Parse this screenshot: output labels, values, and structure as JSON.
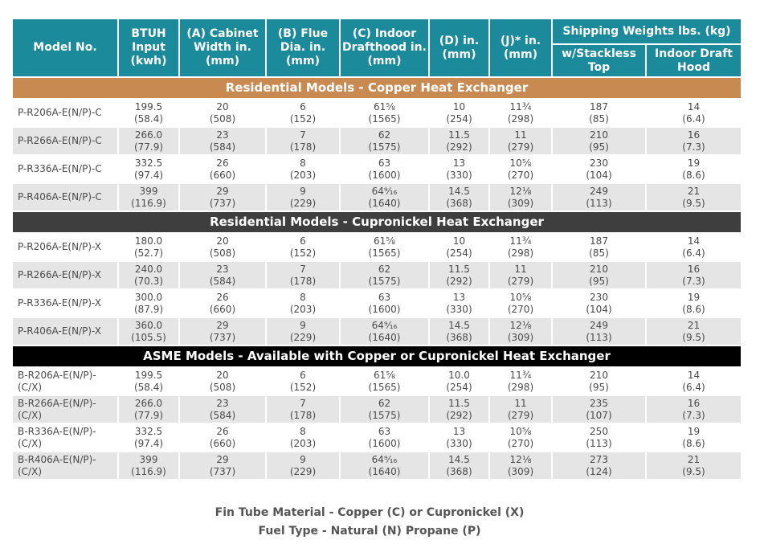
{
  "header": {
    "columns": [
      "Model No.",
      "BTUH Input (kwh)",
      "(A) Cabinet Width in.(mm)",
      "(B) Flue Dia. in. (mm)",
      "(C) Indoor Drafthood in. (mm)",
      "(D) in. (mm)",
      "(J)* in. (mm)"
    ],
    "group": "Shipping Weights  lbs. (kg)",
    "sub_columns": [
      "w/Stackless Top",
      "Indoor Draft Hood"
    ]
  },
  "sections": [
    {
      "title": "Residential Models - Copper Heat Exchanger",
      "rows": [
        [
          "P-R206A-E(N/P)-C",
          [
            "199.5",
            "(58.4)"
          ],
          [
            "20",
            "(508)"
          ],
          [
            "6",
            "(152)"
          ],
          [
            "61⅝",
            "(1565)"
          ],
          [
            "10",
            "(254)"
          ],
          [
            "11¾",
            "(298)"
          ],
          [
            "187",
            "(85)"
          ],
          [
            "14",
            "(6.4)"
          ]
        ],
        [
          "P-R266A-E(N/P)-C",
          [
            "266.0",
            "(77.9)"
          ],
          [
            "23",
            "(584)"
          ],
          [
            "7",
            "(178)"
          ],
          [
            "62",
            "(1575)"
          ],
          [
            "11.5",
            "(292)"
          ],
          [
            "11",
            "(279)"
          ],
          [
            "210",
            "(95)"
          ],
          [
            "16",
            "(7.3)"
          ]
        ],
        [
          "P-R336A-E(N/P)-C",
          [
            "332.5",
            "(97.4)"
          ],
          [
            "26",
            "(660)"
          ],
          [
            "8",
            "(203)"
          ],
          [
            "63",
            "(1600)"
          ],
          [
            "13",
            "(330)"
          ],
          [
            "10⅝",
            "(270)"
          ],
          [
            "230",
            "(104)"
          ],
          [
            "19",
            "(8.6)"
          ]
        ],
        [
          "P-R406A-E(N/P)-C",
          [
            "399",
            "(116.9)"
          ],
          [
            "29",
            "(737)"
          ],
          [
            "9",
            "(229)"
          ],
          [
            "64⁹⁄₁₆",
            "(1640)"
          ],
          [
            "14.5",
            "(368)"
          ],
          [
            "12⅛",
            "(309)"
          ],
          [
            "249",
            "(113)"
          ],
          [
            "21",
            "(9.5)"
          ]
        ]
      ]
    },
    {
      "title": "Residential Models - Cupronickel Heat Exchanger",
      "rows": [
        [
          "P-R206A-E(N/P)-X",
          [
            "180.0",
            "(52.7)"
          ],
          [
            "20",
            "(508)"
          ],
          [
            "6",
            "(152)"
          ],
          [
            "61⅝",
            "(1565)"
          ],
          [
            "10",
            "(254)"
          ],
          [
            "11¾",
            "(298)"
          ],
          [
            "187",
            "(85)"
          ],
          [
            "14",
            "(6.4)"
          ]
        ],
        [
          "P-R266A-E(N/P)-X",
          [
            "240.0",
            "(70.3)"
          ],
          [
            "23",
            "(584)"
          ],
          [
            "7",
            "(178)"
          ],
          [
            "62",
            "(1575)"
          ],
          [
            "11.5",
            "(292)"
          ],
          [
            "11",
            "(279)"
          ],
          [
            "210",
            "(95)"
          ],
          [
            "16",
            "(7.3)"
          ]
        ],
        [
          "P-R336A-E(N/P)-X",
          [
            "300.0",
            "(87.9)"
          ],
          [
            "26",
            "(660)"
          ],
          [
            "8",
            "(203)"
          ],
          [
            "63",
            "(1600)"
          ],
          [
            "13",
            "(330)"
          ],
          [
            "10⅝",
            "(270)"
          ],
          [
            "230",
            "(104)"
          ],
          [
            "19",
            "(8.6)"
          ]
        ],
        [
          "P-R406A-E(N/P)-X",
          [
            "360.0",
            "(105.5)"
          ],
          [
            "29",
            "(737)"
          ],
          [
            "9",
            "(229)"
          ],
          [
            "64⁹⁄₁₆",
            "(1640)"
          ],
          [
            "14.5",
            "(368)"
          ],
          [
            "12⅛",
            "(309)"
          ],
          [
            "249",
            "(113)"
          ],
          [
            "21",
            "(9.5)"
          ]
        ]
      ]
    },
    {
      "title": "ASME Models - Available with Copper or Cupronickel Heat Exchanger",
      "rows": [
        [
          "B-R206A-E(N/P)-(C/X)",
          [
            "199.5",
            "(58.4)"
          ],
          [
            "20",
            "(508)"
          ],
          [
            "6",
            "(152)"
          ],
          [
            "61⅝",
            "(1565)"
          ],
          [
            "10.0",
            "(254)"
          ],
          [
            "11¾",
            "(298)"
          ],
          [
            "210",
            "(95)"
          ],
          [
            "14",
            "(6.4)"
          ]
        ],
        [
          "B-R266A-E(N/P)-(C/X)",
          [
            "266.0",
            "(77.9)"
          ],
          [
            "23",
            "(584)"
          ],
          [
            "7",
            "(178)"
          ],
          [
            "62",
            "(1575)"
          ],
          [
            "11.5",
            "(292)"
          ],
          [
            "11",
            "(279)"
          ],
          [
            "235",
            "(107)"
          ],
          [
            "16",
            "(7.3)"
          ]
        ],
        [
          "B-R336A-E(N/P)-(C/X)",
          [
            "332.5",
            "(97.4)"
          ],
          [
            "26",
            "(660)"
          ],
          [
            "8",
            "(203)"
          ],
          [
            "63",
            "(1600)"
          ],
          [
            "13",
            "(330)"
          ],
          [
            "10⅝",
            "(270)"
          ],
          [
            "250",
            "(113)"
          ],
          [
            "19",
            "(8.6)"
          ]
        ],
        [
          "B-R406A-E(N/P)-(C/X)",
          [
            "399",
            "(116.9)"
          ],
          [
            "29",
            "(737)"
          ],
          [
            "9",
            "(229)"
          ],
          [
            "64⁹⁄₁₆",
            "(1640)"
          ],
          [
            "14.5",
            "(368)"
          ],
          [
            "12⅛",
            "(309)"
          ],
          [
            "273",
            "(124)"
          ],
          [
            "21",
            "(9.5)"
          ]
        ]
      ]
    }
  ],
  "footer": [
    "Fin Tube Material - Copper (C) or Cupronickel (X)",
    "Fuel Type - Natural (N) Propane (P)"
  ]
}
